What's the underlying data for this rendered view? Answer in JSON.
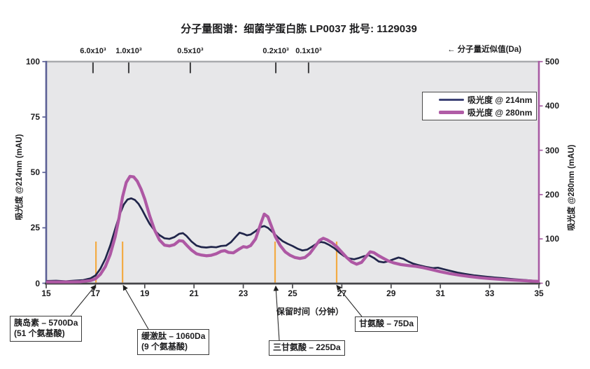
{
  "chart_data": {
    "type": "line",
    "title": "分子量图谱：细菌学蛋白胨 LP0037 批号: 1129039",
    "xlabel": "保留时间（分钟）",
    "xlim": [
      15,
      35
    ],
    "x_ticks": [
      15,
      17,
      19,
      21,
      23,
      25,
      27,
      29,
      31,
      33,
      35
    ],
    "y_left": {
      "label": "吸光度 @214nm (mAU)",
      "lim": [
        0,
        100
      ],
      "ticks": [
        0,
        25,
        50,
        75,
        100
      ],
      "axis_color": "#5b6095"
    },
    "y_right": {
      "label": "吸光度 @280nm (mAU)",
      "lim": [
        0,
        500
      ],
      "ticks": [
        0,
        100,
        200,
        300,
        400,
        500
      ],
      "axis_color": "#a85ba3"
    },
    "grid": false,
    "legend_position": "upper right",
    "plot_bg": "#e7e7e9",
    "top_axis": {
      "note": "← 分子量近似值(Da)",
      "unit_ticks": [
        {
          "label": "6.0x10³",
          "t": 16.9
        },
        {
          "label": "1.0x10³",
          "t": 18.35
        },
        {
          "label": "0.5x10³",
          "t": 20.85
        },
        {
          "label": "0.2x10³",
          "t": 24.32
        },
        {
          "label": "0.1x10³",
          "t": 25.65
        }
      ]
    },
    "markers": {
      "color": "#f3ab44",
      "t": [
        17.02,
        18.1,
        24.29,
        26.79
      ]
    },
    "series": [
      {
        "name": "吸光度 @ 214nm",
        "axis": "left",
        "legend_color": "#3d4376",
        "line_color": "#20254a",
        "line_width": 2.7,
        "x": [
          15,
          15.4,
          15.8,
          16.2,
          16.5,
          16.8,
          17,
          17.2,
          17.4,
          17.6,
          17.8,
          18,
          18.15,
          18.3,
          18.45,
          18.6,
          18.75,
          18.9,
          19.05,
          19.2,
          19.4,
          19.6,
          19.8,
          20,
          20.2,
          20.4,
          20.55,
          20.7,
          20.9,
          21.1,
          21.3,
          21.5,
          21.7,
          21.9,
          22.1,
          22.3,
          22.5,
          22.7,
          22.85,
          23,
          23.15,
          23.3,
          23.5,
          23.7,
          23.85,
          24,
          24.2,
          24.4,
          24.6,
          24.8,
          25,
          25.2,
          25.4,
          25.6,
          25.8,
          26,
          26.15,
          26.3,
          26.5,
          26.7,
          26.9,
          27.1,
          27.3,
          27.5,
          27.7,
          27.9,
          28.1,
          28.3,
          28.5,
          28.7,
          28.9,
          29.1,
          29.3,
          29.5,
          29.7,
          29.9,
          30.1,
          30.4,
          30.7,
          30.9,
          31.1,
          31.4,
          31.7,
          32,
          32.4,
          32.8,
          33.2,
          33.6,
          34,
          34.4,
          34.8,
          35
        ],
        "y": [
          1,
          1.1,
          0.9,
          1.2,
          1.4,
          2.2,
          3.5,
          6.5,
          11,
          17,
          24.5,
          31.5,
          35.5,
          37.8,
          38.3,
          37.6,
          35.8,
          33,
          29.8,
          26.8,
          23.8,
          21.7,
          20.3,
          20,
          20.8,
          22.3,
          22.6,
          21.3,
          18.8,
          17,
          16.3,
          16.1,
          16.4,
          16.2,
          16.8,
          17,
          18.5,
          21,
          22.8,
          22.3,
          21.6,
          22,
          23.5,
          25.3,
          25.8,
          25,
          23,
          20.8,
          19,
          17.8,
          16.8,
          15.6,
          14.8,
          15.2,
          16.6,
          18,
          18.6,
          18.3,
          17.2,
          15.8,
          13.8,
          12.2,
          11.2,
          10.8,
          11.4,
          12.2,
          12.6,
          11.4,
          9.8,
          9.4,
          10,
          10.8,
          11.6,
          11,
          9.8,
          8.8,
          8.2,
          7.4,
          6.8,
          7,
          6.4,
          5.6,
          4.8,
          4.2,
          3.5,
          3,
          2.6,
          2.2,
          1.8,
          1.5,
          1.1,
          1
        ]
      },
      {
        "name": "吸光度 @ 280nm",
        "axis": "right",
        "legend_color": "#b05ca6",
        "line_color": "#ae58a4",
        "line_width": 4.3,
        "x": [
          15,
          15.5,
          16,
          16.4,
          16.8,
          17,
          17.2,
          17.4,
          17.6,
          17.8,
          17.95,
          18.1,
          18.25,
          18.4,
          18.55,
          18.7,
          18.85,
          19,
          19.2,
          19.4,
          19.6,
          19.8,
          20,
          20.2,
          20.4,
          20.55,
          20.7,
          20.9,
          21.1,
          21.3,
          21.5,
          21.7,
          21.9,
          22.1,
          22.25,
          22.4,
          22.6,
          22.8,
          23,
          23.15,
          23.3,
          23.5,
          23.7,
          23.85,
          24,
          24.15,
          24.3,
          24.5,
          24.7,
          24.9,
          25.1,
          25.3,
          25.5,
          25.7,
          25.9,
          26.1,
          26.25,
          26.4,
          26.6,
          26.8,
          27,
          27.2,
          27.4,
          27.6,
          27.8,
          28,
          28.15,
          28.3,
          28.5,
          28.7,
          28.9,
          29.1,
          29.4,
          29.7,
          30,
          30.3,
          30.6,
          31,
          31.4,
          31.8,
          32.2,
          32.6,
          33,
          33.5,
          34,
          34.5,
          35
        ],
        "y": [
          3,
          3,
          3,
          3.5,
          6,
          10,
          20,
          37.5,
          65,
          105,
          145,
          195,
          227.5,
          241,
          240,
          230,
          212.5,
          190,
          152.5,
          120,
          97.5,
          86,
          84,
          87,
          96,
          95,
          86,
          74.5,
          66.5,
          63.5,
          62,
          63,
          66.5,
          72,
          73.5,
          69.5,
          68.5,
          76,
          82.5,
          81,
          85,
          100,
          132.5,
          156,
          150,
          127.5,
          105,
          85,
          71,
          63,
          58,
          56,
          58,
          67,
          82,
          97,
          101.5,
          98,
          91.5,
          82,
          70,
          58,
          48,
          43,
          47,
          61,
          71,
          69,
          62,
          56,
          50,
          46,
          42,
          40,
          38,
          35,
          31.5,
          26,
          21.5,
          18,
          15,
          12.5,
          10.5,
          8.5,
          7,
          5.5,
          4
        ]
      }
    ],
    "annotations": [
      {
        "lines": [
          "胰岛素 – 5700Da",
          "(51 个氨基酸)"
        ]
      },
      {
        "lines": [
          "缓激肽 – 1060Da",
          "(9 个氨基酸)"
        ]
      },
      {
        "lines": [
          "三甘氨酸 – 225Da"
        ]
      },
      {
        "lines": [
          "甘氨酸  – 75Da"
        ]
      }
    ]
  }
}
